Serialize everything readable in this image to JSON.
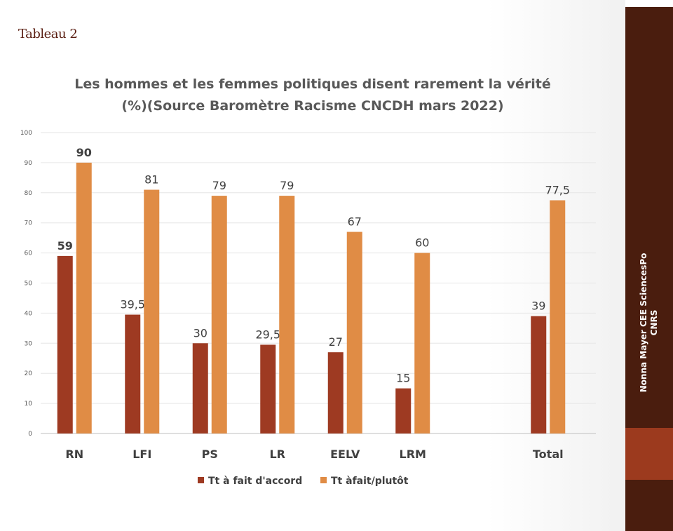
{
  "slide": {
    "label": "Tableau 2",
    "sidebar_text": "Nonna Mayer CEE SciencesPo\nCNRS"
  },
  "colors": {
    "series_1": "#9e3a22",
    "series_2": "#e08c45",
    "highlight_label": "#c0392b",
    "sidebar_dark": "#4a1d0e",
    "sidebar_accent": "#9c3a1e"
  },
  "chart_data": {
    "type": "bar",
    "title": "Les hommes et les femmes politiques disent rarement la vérité\n(%)(Source Baromètre Racisme CNCDH mars 2022)",
    "xlabel": "",
    "ylabel": "",
    "ylim": [
      0,
      100
    ],
    "y_ticks": [
      0,
      10,
      20,
      30,
      40,
      50,
      60,
      70,
      80,
      90,
      100
    ],
    "grid": true,
    "legend_position": "bottom",
    "categories": [
      "RN",
      "LFI",
      "PS",
      "LR",
      "EELV",
      "LRM",
      "",
      "Total"
    ],
    "series": [
      {
        "name": "Tt à fait d'accord",
        "values": [
          59,
          39.5,
          30,
          29.5,
          27,
          15,
          null,
          39
        ],
        "labels": [
          "59",
          "39,5",
          "30",
          "29,5",
          "27",
          "15",
          "",
          "39"
        ]
      },
      {
        "name": "Tt àfait/plutôt",
        "values": [
          90,
          81,
          79,
          79,
          67,
          60,
          null,
          77.5
        ],
        "labels": [
          "90",
          "81",
          "79",
          "79",
          "67",
          "60",
          "",
          "77,5"
        ]
      }
    ],
    "annotations": [
      {
        "series": 0,
        "index": 0,
        "style": "bold"
      },
      {
        "series": 1,
        "index": 0,
        "style": "bold-red"
      }
    ]
  }
}
